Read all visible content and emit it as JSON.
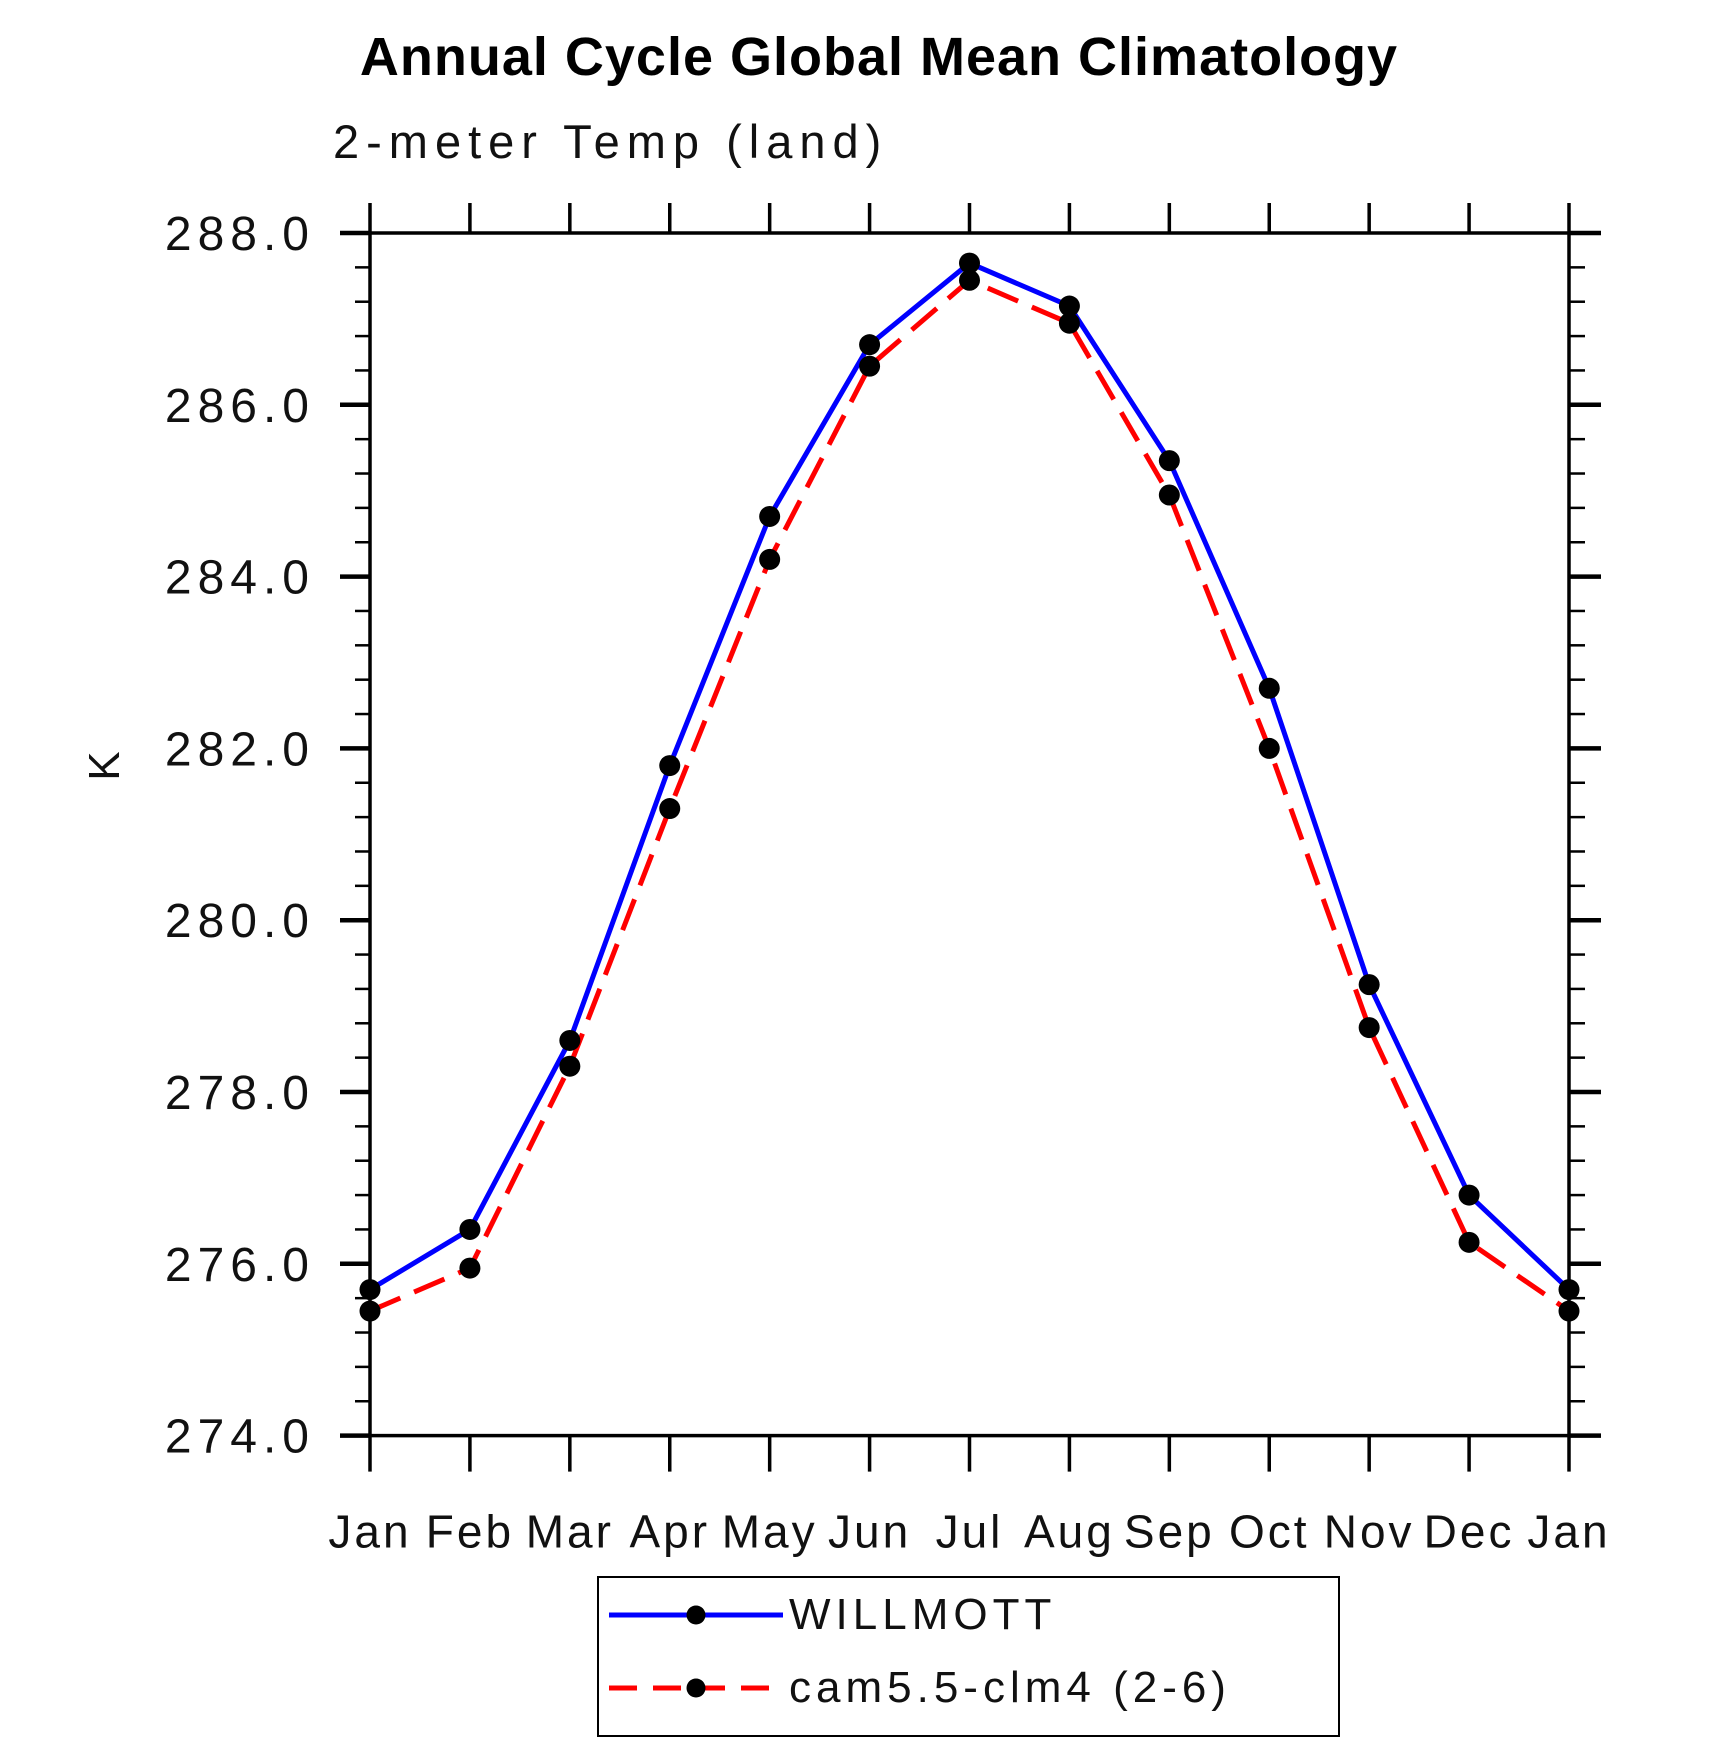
{
  "page": {
    "background": "#ffffff"
  },
  "chart_data": {
    "type": "line",
    "title": "Annual Cycle Global Mean Climatology",
    "subtitle": "2-meter Temp (land)",
    "ylabel": "K",
    "xlabel": "",
    "categories": [
      "Jan",
      "Feb",
      "Mar",
      "Apr",
      "May",
      "Jun",
      "Jul",
      "Aug",
      "Sep",
      "Oct",
      "Nov",
      "Dec",
      "Jan"
    ],
    "ylim": [
      274.0,
      288.0
    ],
    "ytick_step": 2.0,
    "yminor_step": 0.4,
    "ytick_labels": [
      "274.0",
      "276.0",
      "278.0",
      "280.0",
      "282.0",
      "284.0",
      "286.0",
      "288.0"
    ],
    "grid": false,
    "legend_position": "bottom",
    "axis_color": "#000000",
    "marker_color": "#000000",
    "series": [
      {
        "name": "WILLMOTT",
        "color": "#0000ff",
        "style": "solid",
        "marker": "filled-dot",
        "values": [
          275.7,
          276.4,
          278.6,
          281.8,
          284.7,
          286.7,
          287.65,
          287.15,
          285.35,
          282.7,
          279.25,
          276.8,
          275.7
        ]
      },
      {
        "name": "cam5.5-clm4 (2-6)",
        "color": "#ff0000",
        "style": "dashed",
        "marker": "filled-dot",
        "values": [
          275.45,
          275.95,
          278.3,
          281.3,
          284.2,
          286.45,
          287.45,
          286.95,
          284.95,
          282.0,
          278.75,
          276.25,
          275.45
        ]
      }
    ]
  }
}
